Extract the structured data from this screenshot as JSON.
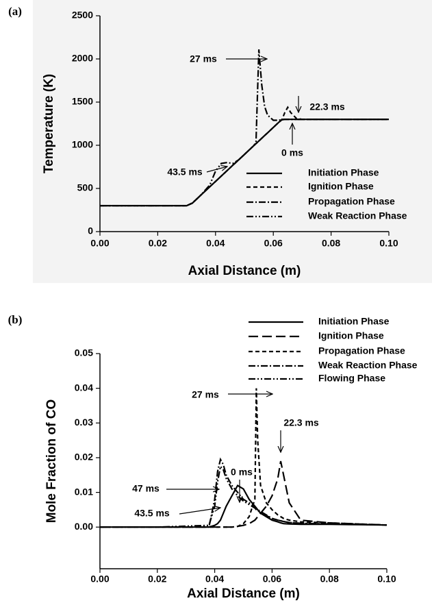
{
  "chart_data": [
    {
      "type": "line",
      "panel_label": "(a)",
      "xlabel": "Axial Distance (m)",
      "ylabel": "Temperature (K)",
      "x": [
        0,
        0.01,
        0.02,
        0.03,
        0.032,
        0.035,
        0.038,
        0.04,
        0.042,
        0.044,
        0.046,
        0.048,
        0.05,
        0.052,
        0.053,
        0.054,
        0.055,
        0.056,
        0.057,
        0.058,
        0.06,
        0.062,
        0.063,
        0.064,
        0.065,
        0.066,
        0.068,
        0.07,
        0.08,
        0.09,
        0.1
      ],
      "series": [
        {
          "name": "Initiation Phase",
          "color": "#000000",
          "linestyle": "solid",
          "values": [
            300,
            300,
            300,
            300,
            330,
            425,
            519,
            581,
            644,
            706,
            769,
            831,
            894,
            956,
            988,
            1019,
            1050,
            1081,
            1113,
            1144,
            1206,
            1269,
            1295,
            1300,
            1300,
            1300,
            1300,
            1300,
            1300,
            1300,
            1300
          ]
        },
        {
          "name": "Ignition Phase",
          "color": "#000000",
          "linestyle": "dashed",
          "values": [
            300,
            300,
            300,
            300,
            330,
            425,
            519,
            581,
            644,
            706,
            769,
            831,
            894,
            956,
            988,
            1019,
            1050,
            1081,
            1113,
            1144,
            1206,
            1269,
            1300,
            1380,
            1440,
            1380,
            1310,
            1300,
            1300,
            1300,
            1300
          ]
        },
        {
          "name": "Propagation Phase",
          "color": "#000000",
          "linestyle": "dashdot",
          "values": [
            300,
            300,
            300,
            300,
            330,
            425,
            519,
            581,
            644,
            706,
            769,
            831,
            894,
            956,
            988,
            1030,
            2110,
            1700,
            1450,
            1350,
            1290,
            1290,
            1300,
            1300,
            1300,
            1300,
            1300,
            1300,
            1300,
            1300,
            1300
          ]
        },
        {
          "name": "Weak Reaction Phase",
          "color": "#000000",
          "linestyle": "dashdotdot",
          "values": [
            300,
            300,
            300,
            300,
            330,
            425,
            540,
            700,
            790,
            800,
            790,
            831,
            894,
            956,
            988,
            1019,
            1050,
            1081,
            1113,
            1144,
            1206,
            1269,
            1295,
            1300,
            1300,
            1300,
            1300,
            1300,
            1300,
            1300,
            1300
          ]
        }
      ],
      "xlim": [
        0,
        0.1
      ],
      "ylim": [
        0,
        2500
      ],
      "xticks": [
        {
          "value": 0,
          "label": "0.00"
        },
        0.02,
        0.04,
        0.06,
        0.08,
        {
          "value": 0.1,
          "label": "0.10"
        }
      ],
      "yticks": [
        0,
        500,
        1000,
        1500,
        2000,
        2500
      ],
      "annotations": [
        "27 ms",
        "22.3 ms",
        "0 ms",
        "43.5 ms"
      ]
    },
    {
      "type": "line",
      "panel_label": "(b)",
      "xlabel": "Axial Distance (m)",
      "ylabel": "Mole Fraction of CO",
      "x": [
        0,
        0.02,
        0.038,
        0.04,
        0.041,
        0.042,
        0.043,
        0.044,
        0.046,
        0.048,
        0.05,
        0.052,
        0.054,
        0.0545,
        0.055,
        0.056,
        0.058,
        0.06,
        0.062,
        0.063,
        0.064,
        0.066,
        0.07,
        0.08,
        0.09,
        0.1
      ],
      "series": [
        {
          "name": "Initiation Phase",
          "color": "#000000",
          "linestyle": "solid",
          "values": [
            0,
            0,
            0,
            0.0005,
            0.001,
            0.002,
            0.004,
            0.006,
            0.009,
            0.012,
            0.011,
            0.008,
            0.006,
            0.0055,
            0.005,
            0.004,
            0.003,
            0.002,
            0.0015,
            0.0012,
            0.001,
            0.0009,
            0.0008,
            0.0008,
            0.0007,
            0.0006
          ]
        },
        {
          "name": "Ignition Phase",
          "color": "#000000",
          "linestyle": "longdash",
          "values": [
            0,
            0,
            0,
            0,
            0,
            0,
            0,
            0,
            0,
            0.0002,
            0.0005,
            0.001,
            0.002,
            0.0025,
            0.003,
            0.004,
            0.006,
            0.009,
            0.014,
            0.019,
            0.015,
            0.007,
            0.002,
            0.0012,
            0.0009,
            0.0006
          ]
        },
        {
          "name": "Propagation Phase",
          "color": "#000000",
          "linestyle": "dashed",
          "values": [
            0,
            0,
            0,
            0,
            0,
            0,
            0,
            0,
            0,
            0.0002,
            0.001,
            0.003,
            0.008,
            0.04,
            0.025,
            0.012,
            0.007,
            0.005,
            0.0035,
            0.003,
            0.0025,
            0.002,
            0.0015,
            0.0012,
            0.0009,
            0.0006
          ]
        },
        {
          "name": "Weak Reaction Phase",
          "color": "#000000",
          "linestyle": "dashdot",
          "values": [
            0,
            0,
            0,
            0.008,
            0.016,
            0.0195,
            0.018,
            0.015,
            0.012,
            0.01,
            0.008,
            0.007,
            0.006,
            0.0055,
            0.005,
            0.0045,
            0.0035,
            0.0025,
            0.002,
            0.0018,
            0.0016,
            0.0013,
            0.0011,
            0.0009,
            0.0008,
            0.0006
          ]
        },
        {
          "name": "Flowing Phase",
          "color": "#000000",
          "linestyle": "dashdotdot",
          "values": [
            0,
            0,
            0.0005,
            0.006,
            0.013,
            0.0175,
            0.0165,
            0.014,
            0.011,
            0.009,
            0.0075,
            0.0065,
            0.0055,
            0.005,
            0.0048,
            0.0042,
            0.0033,
            0.0025,
            0.002,
            0.0018,
            0.0016,
            0.0013,
            0.0011,
            0.0009,
            0.0008,
            0.0006
          ]
        }
      ],
      "xlim": [
        0,
        0.1
      ],
      "ylim": [
        -0.012,
        0.05
      ],
      "xticks": [
        {
          "value": 0,
          "label": "0.00"
        },
        0.02,
        0.04,
        0.06,
        0.08,
        {
          "value": 0.1,
          "label": "0.10"
        }
      ],
      "yticks": [
        {
          "value": 0,
          "label": "0.00"
        },
        0.01,
        0.02,
        0.03,
        0.04,
        0.05
      ],
      "annotations": [
        "27 ms",
        "22.3 ms",
        "0 ms",
        "47 ms",
        "43.5 ms"
      ]
    }
  ]
}
